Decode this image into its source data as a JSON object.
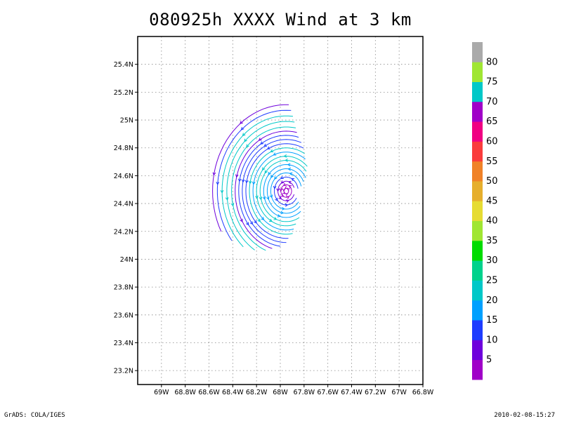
{
  "title": "080925h XXXX Wind at 3 km",
  "footer": {
    "left": "GrADS: COLA/IGES",
    "right": "2010-02-08-15:27"
  },
  "chart_data": {
    "type": "streamline",
    "xlim": [
      -69.2,
      -66.8
    ],
    "ylim": [
      23.1,
      25.6
    ],
    "grid": true,
    "x_ticks": [
      {
        "value": -69.0,
        "label": "69W"
      },
      {
        "value": -68.8,
        "label": "68.8W"
      },
      {
        "value": -68.6,
        "label": "68.6W"
      },
      {
        "value": -68.4,
        "label": "68.4W"
      },
      {
        "value": -68.2,
        "label": "68.2W"
      },
      {
        "value": -68.0,
        "label": "68W"
      },
      {
        "value": -67.8,
        "label": "67.8W"
      },
      {
        "value": -67.6,
        "label": "67.6W"
      },
      {
        "value": -67.4,
        "label": "67.4W"
      },
      {
        "value": -67.2,
        "label": "67.2W"
      },
      {
        "value": -67.0,
        "label": "67W"
      },
      {
        "value": -66.8,
        "label": "66.8W"
      }
    ],
    "y_ticks": [
      {
        "value": 23.2,
        "label": "23.2N"
      },
      {
        "value": 23.4,
        "label": "23.4N"
      },
      {
        "value": 23.6,
        "label": "23.6N"
      },
      {
        "value": 23.8,
        "label": "23.8N"
      },
      {
        "value": 24.0,
        "label": "24N"
      },
      {
        "value": 24.2,
        "label": "24.2N"
      },
      {
        "value": 24.4,
        "label": "24.4N"
      },
      {
        "value": 24.6,
        "label": "24.6N"
      },
      {
        "value": 24.8,
        "label": "24.8N"
      },
      {
        "value": 25.0,
        "label": "25N"
      },
      {
        "value": 25.2,
        "label": "25.2N"
      },
      {
        "value": 25.4,
        "label": "25.4N"
      }
    ],
    "vortex_center": {
      "lon": -67.95,
      "lat": 24.49
    },
    "colorbar": {
      "colors": [
        "#a000c8",
        "#6e00dc",
        "#1e3cff",
        "#00a0ff",
        "#00c8c8",
        "#00d28c",
        "#00dc00",
        "#a0e632",
        "#e6dc32",
        "#e6af2d",
        "#f08228",
        "#fa3c3c",
        "#f00082",
        "#a000c8",
        "#00c8c8",
        "#a0e632",
        "#aaaaaa"
      ],
      "labels": [
        "5",
        "10",
        "15",
        "20",
        "25",
        "30",
        "35",
        "40",
        "45",
        "50",
        "55",
        "60",
        "65",
        "70",
        "75",
        "80"
      ]
    },
    "streamlines": [
      {
        "r": 0.02,
        "start": 0,
        "end": 360,
        "color": "#a000c8"
      },
      {
        "r": 0.045,
        "start": 0,
        "end": 360,
        "color": "#a000c8"
      },
      {
        "r": 0.07,
        "start": 20,
        "end": 340,
        "color": "#6e00dc"
      },
      {
        "r": 0.1,
        "start": 10,
        "end": 330,
        "color": "#1e3cff"
      },
      {
        "r": 0.13,
        "start": 15,
        "end": 325,
        "color": "#00a0ff"
      },
      {
        "r": 0.16,
        "start": 25,
        "end": 320,
        "color": "#00a0ff"
      },
      {
        "r": 0.19,
        "start": 30,
        "end": 310,
        "color": "#00a0ff"
      },
      {
        "r": 0.22,
        "start": 40,
        "end": 300,
        "color": "#00c8c8"
      },
      {
        "r": 0.25,
        "start": 45,
        "end": 290,
        "color": "#00c8c8"
      },
      {
        "r": 0.28,
        "start": 55,
        "end": 285,
        "color": "#00a0ff"
      },
      {
        "r": 0.31,
        "start": 60,
        "end": 280,
        "color": "#00c8c8"
      },
      {
        "r": 0.34,
        "start": 65,
        "end": 275,
        "color": "#1e3cff"
      },
      {
        "r": 0.37,
        "start": 70,
        "end": 270,
        "color": "#1e3cff"
      },
      {
        "r": 0.4,
        "start": 75,
        "end": 265,
        "color": "#1e3cff"
      },
      {
        "r": 0.43,
        "start": 78,
        "end": 255,
        "color": "#6e00dc"
      },
      {
        "r": 0.46,
        "start": 80,
        "end": 250,
        "color": "#00c8c8"
      },
      {
        "r": 0.5,
        "start": 82,
        "end": 240,
        "color": "#00c8c8"
      },
      {
        "r": 0.54,
        "start": 84,
        "end": 230,
        "color": "#00c8c8"
      },
      {
        "r": 0.58,
        "start": 86,
        "end": 220,
        "color": "#1e3cff"
      },
      {
        "r": 0.62,
        "start": 88,
        "end": 210,
        "color": "#6e00dc"
      }
    ]
  }
}
